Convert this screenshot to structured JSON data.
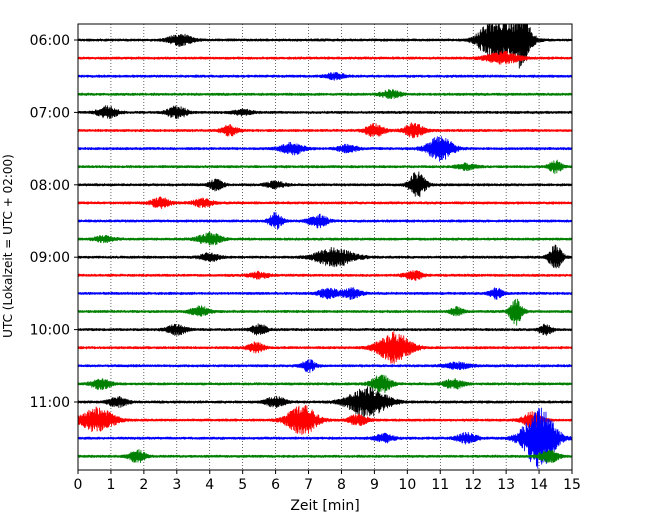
{
  "chart_data": {
    "type": "line",
    "title": "",
    "xlabel": "Zeit  [min]",
    "ylabel": "UTC (Lokalzeit = UTC + 02:00)",
    "xlim": [
      0,
      15
    ],
    "x_ticks": [
      "0",
      "1",
      "2",
      "3",
      "4",
      "5",
      "6",
      "7",
      "8",
      "9",
      "10",
      "11",
      "12",
      "13",
      "14",
      "15"
    ],
    "y_tick_labels": [
      "06:00",
      "07:00",
      "08:00",
      "09:00",
      "10:00",
      "11:00"
    ],
    "grid": "vertical dotted",
    "trace_interval_min": 15,
    "trace_colors": [
      "#000000",
      "#ff0000",
      "#0000ff",
      "#008000"
    ],
    "rows": [
      {
        "time": "06:00",
        "color": "#000000",
        "base": 1.0,
        "events": [
          {
            "t": 3.1,
            "a": 6,
            "w": 0.35
          },
          {
            "t": 13.0,
            "a": 16,
            "w": 0.6
          },
          {
            "t": 13.5,
            "a": 22,
            "w": 0.25
          },
          {
            "t": 12.5,
            "a": 10,
            "w": 0.4
          }
        ]
      },
      {
        "time": "06:15",
        "color": "#ff0000",
        "base": 1.0,
        "events": [
          {
            "t": 12.9,
            "a": 6,
            "w": 0.5
          }
        ]
      },
      {
        "time": "06:30",
        "color": "#0000ff",
        "base": 1.0,
        "events": [
          {
            "t": 7.8,
            "a": 3,
            "w": 0.3
          }
        ]
      },
      {
        "time": "06:45",
        "color": "#008000",
        "base": 1.0,
        "events": [
          {
            "t": 9.5,
            "a": 4,
            "w": 0.3
          }
        ]
      },
      {
        "time": "07:00",
        "color": "#000000",
        "base": 1.0,
        "events": [
          {
            "t": 0.9,
            "a": 6,
            "w": 0.3
          },
          {
            "t": 3.0,
            "a": 6,
            "w": 0.3
          },
          {
            "t": 5.0,
            "a": 3,
            "w": 0.3
          }
        ]
      },
      {
        "time": "07:15",
        "color": "#ff0000",
        "base": 1.0,
        "events": [
          {
            "t": 4.6,
            "a": 5,
            "w": 0.25
          },
          {
            "t": 9.0,
            "a": 6,
            "w": 0.3
          },
          {
            "t": 10.2,
            "a": 7,
            "w": 0.3
          }
        ]
      },
      {
        "time": "07:30",
        "color": "#0000ff",
        "base": 1.0,
        "events": [
          {
            "t": 6.5,
            "a": 6,
            "w": 0.35
          },
          {
            "t": 8.2,
            "a": 4,
            "w": 0.3
          },
          {
            "t": 11.0,
            "a": 12,
            "w": 0.4
          }
        ]
      },
      {
        "time": "07:45",
        "color": "#008000",
        "base": 1.0,
        "events": [
          {
            "t": 14.5,
            "a": 6,
            "w": 0.2
          },
          {
            "t": 11.8,
            "a": 3,
            "w": 0.3
          }
        ]
      },
      {
        "time": "08:00",
        "color": "#000000",
        "base": 1.0,
        "events": [
          {
            "t": 4.2,
            "a": 6,
            "w": 0.2
          },
          {
            "t": 10.3,
            "a": 13,
            "w": 0.25
          },
          {
            "t": 6.0,
            "a": 3,
            "w": 0.3
          }
        ]
      },
      {
        "time": "08:15",
        "color": "#ff0000",
        "base": 1.0,
        "events": [
          {
            "t": 2.5,
            "a": 5,
            "w": 0.3
          },
          {
            "t": 3.8,
            "a": 4,
            "w": 0.3
          }
        ]
      },
      {
        "time": "08:30",
        "color": "#0000ff",
        "base": 1.0,
        "events": [
          {
            "t": 6.0,
            "a": 8,
            "w": 0.2
          },
          {
            "t": 7.3,
            "a": 6,
            "w": 0.3
          }
        ]
      },
      {
        "time": "08:45",
        "color": "#008000",
        "base": 1.0,
        "events": [
          {
            "t": 4.0,
            "a": 6,
            "w": 0.35
          },
          {
            "t": 0.8,
            "a": 3,
            "w": 0.3
          }
        ]
      },
      {
        "time": "09:00",
        "color": "#000000",
        "base": 1.0,
        "events": [
          {
            "t": 7.8,
            "a": 9,
            "w": 0.6
          },
          {
            "t": 14.5,
            "a": 13,
            "w": 0.2
          },
          {
            "t": 4.0,
            "a": 4,
            "w": 0.3
          }
        ]
      },
      {
        "time": "09:15",
        "color": "#ff0000",
        "base": 1.0,
        "events": [
          {
            "t": 10.2,
            "a": 4,
            "w": 0.3
          },
          {
            "t": 5.5,
            "a": 3,
            "w": 0.3
          }
        ]
      },
      {
        "time": "09:30",
        "color": "#0000ff",
        "base": 1.0,
        "events": [
          {
            "t": 7.6,
            "a": 5,
            "w": 0.3
          },
          {
            "t": 8.3,
            "a": 5,
            "w": 0.3
          },
          {
            "t": 12.7,
            "a": 5,
            "w": 0.2
          }
        ]
      },
      {
        "time": "09:45",
        "color": "#008000",
        "base": 1.0,
        "events": [
          {
            "t": 13.3,
            "a": 13,
            "w": 0.2
          },
          {
            "t": 3.7,
            "a": 5,
            "w": 0.3
          },
          {
            "t": 11.5,
            "a": 4,
            "w": 0.2
          }
        ]
      },
      {
        "time": "10:00",
        "color": "#000000",
        "base": 1.0,
        "events": [
          {
            "t": 3.0,
            "a": 5,
            "w": 0.3
          },
          {
            "t": 5.5,
            "a": 5,
            "w": 0.25
          },
          {
            "t": 14.2,
            "a": 5,
            "w": 0.2
          }
        ]
      },
      {
        "time": "10:15",
        "color": "#ff0000",
        "base": 1.0,
        "events": [
          {
            "t": 9.6,
            "a": 15,
            "w": 0.5
          },
          {
            "t": 5.4,
            "a": 5,
            "w": 0.25
          }
        ]
      },
      {
        "time": "10:30",
        "color": "#0000ff",
        "base": 1.0,
        "events": [
          {
            "t": 7.0,
            "a": 6,
            "w": 0.2
          },
          {
            "t": 11.5,
            "a": 3,
            "w": 0.4
          }
        ]
      },
      {
        "time": "10:45",
        "color": "#008000",
        "base": 1.0,
        "events": [
          {
            "t": 9.2,
            "a": 9,
            "w": 0.3
          },
          {
            "t": 0.7,
            "a": 5,
            "w": 0.3
          },
          {
            "t": 11.4,
            "a": 5,
            "w": 0.3
          }
        ]
      },
      {
        "time": "11:00",
        "color": "#000000",
        "base": 1.0,
        "events": [
          {
            "t": 8.8,
            "a": 15,
            "w": 0.6
          },
          {
            "t": 6.0,
            "a": 5,
            "w": 0.3
          },
          {
            "t": 1.2,
            "a": 5,
            "w": 0.3
          }
        ]
      },
      {
        "time": "11:15",
        "color": "#ff0000",
        "base": 1.0,
        "events": [
          {
            "t": 0.6,
            "a": 12,
            "w": 0.5
          },
          {
            "t": 6.8,
            "a": 15,
            "w": 0.45
          },
          {
            "t": 8.5,
            "a": 5,
            "w": 0.3
          },
          {
            "t": 13.8,
            "a": 8,
            "w": 0.3
          }
        ]
      },
      {
        "time": "11:30",
        "color": "#0000ff",
        "base": 1.0,
        "events": [
          {
            "t": 14.0,
            "a": 30,
            "w": 0.5
          },
          {
            "t": 11.8,
            "a": 5,
            "w": 0.3
          },
          {
            "t": 9.3,
            "a": 4,
            "w": 0.3
          }
        ]
      },
      {
        "time": "11:45",
        "color": "#008000",
        "base": 1.0,
        "events": [
          {
            "t": 1.8,
            "a": 6,
            "w": 0.25
          },
          {
            "t": 14.3,
            "a": 6,
            "w": 0.3
          }
        ]
      }
    ]
  }
}
